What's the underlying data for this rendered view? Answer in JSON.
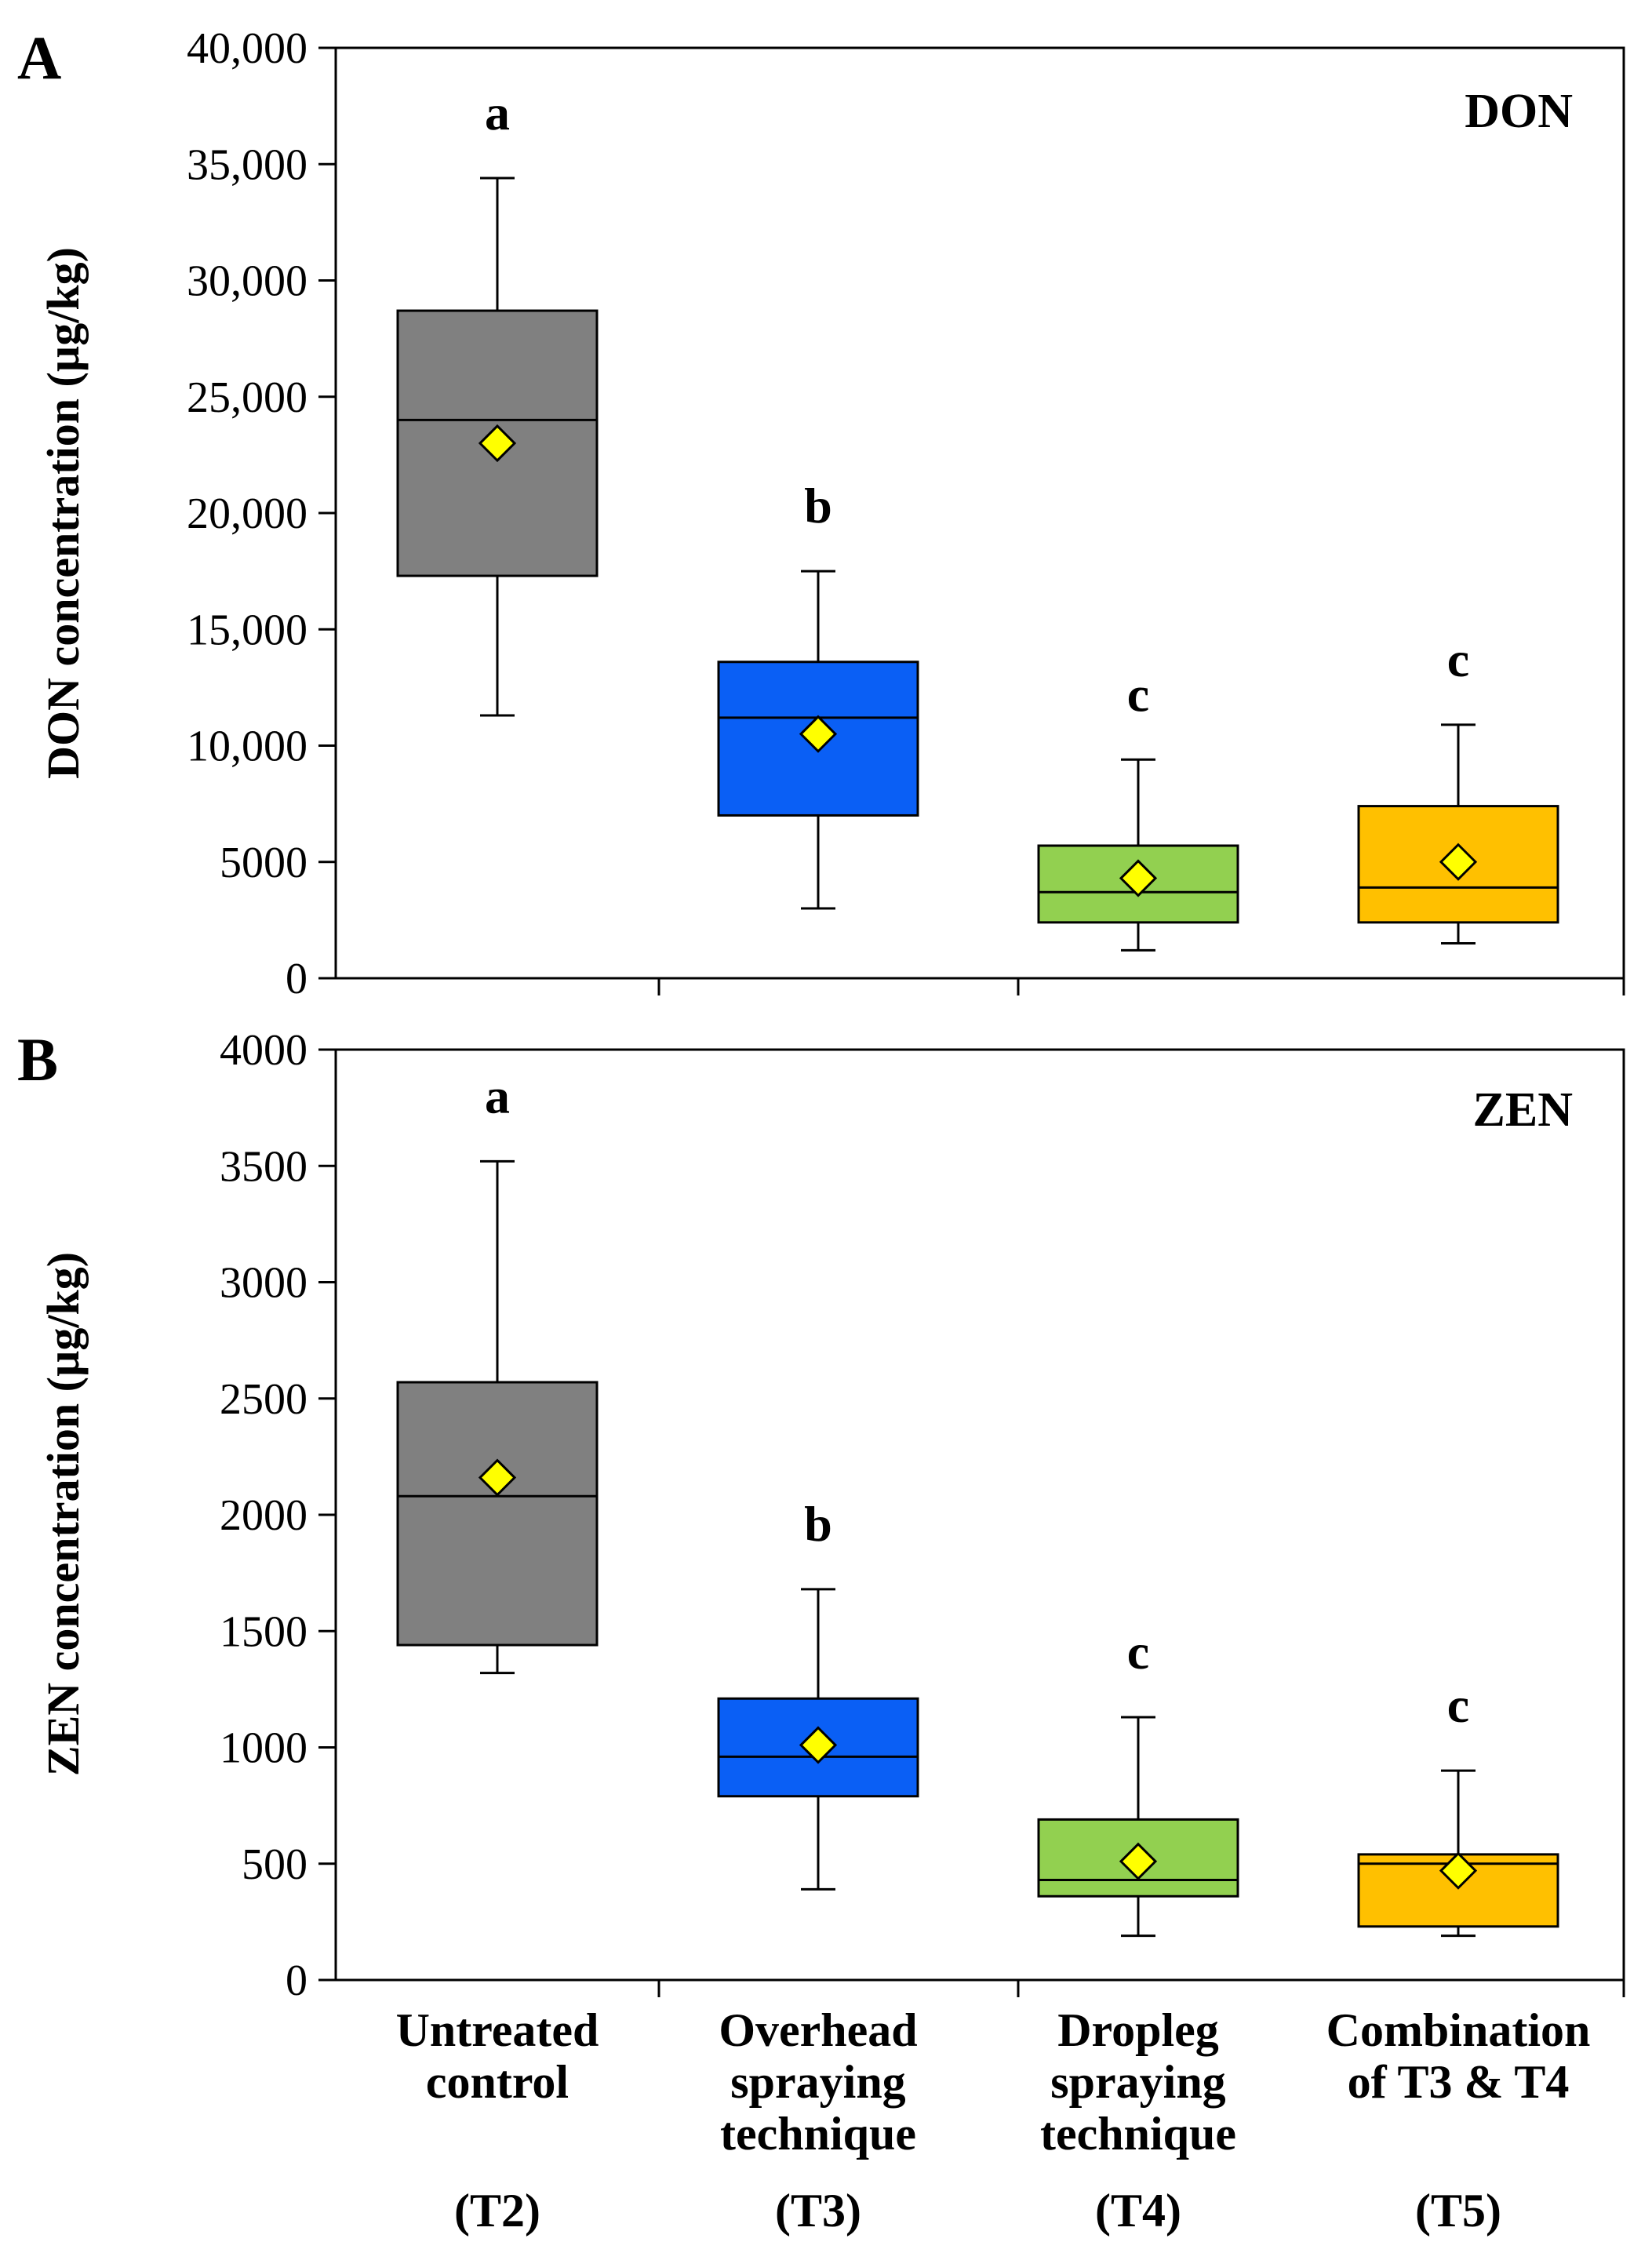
{
  "chart_data": [
    {
      "type": "box",
      "panel_label": "A",
      "series_label": "DON",
      "ylabel": "DON concentration (µg/kg)",
      "ylim": [
        0,
        40000
      ],
      "yticks": [
        0,
        5000,
        10000,
        15000,
        20000,
        25000,
        30000,
        35000,
        40000
      ],
      "ytick_labels": [
        "0",
        "5000",
        "10,000",
        "15,000",
        "20,000",
        "25,000",
        "30,000",
        "35,000",
        "40,000"
      ],
      "boxes": [
        {
          "min": 11300,
          "q1": 17300,
          "median": 24000,
          "q3": 28700,
          "max": 34400,
          "mean": 23000,
          "sig": "a",
          "color": "#808080"
        },
        {
          "min": 3000,
          "q1": 7000,
          "median": 11200,
          "q3": 13600,
          "max": 17500,
          "mean": 10500,
          "sig": "b",
          "color": "#0a5ff5"
        },
        {
          "min": 1200,
          "q1": 2400,
          "median": 3700,
          "q3": 5700,
          "max": 9400,
          "mean": 4300,
          "sig": "c",
          "color": "#92d050"
        },
        {
          "min": 1500,
          "q1": 2400,
          "median": 3900,
          "q3": 7400,
          "max": 10900,
          "mean": 5000,
          "sig": "c",
          "color": "#ffc000"
        }
      ]
    },
    {
      "type": "box",
      "panel_label": "B",
      "series_label": "ZEN",
      "ylabel": "ZEN concentration (µg/kg)",
      "ylim": [
        0,
        4000
      ],
      "yticks": [
        0,
        500,
        1000,
        1500,
        2000,
        2500,
        3000,
        3500,
        4000
      ],
      "ytick_labels": [
        "0",
        "500",
        "1000",
        "1500",
        "2000",
        "2500",
        "3000",
        "3500",
        "4000"
      ],
      "boxes": [
        {
          "min": 1320,
          "q1": 1440,
          "median": 2080,
          "q3": 2570,
          "max": 3520,
          "mean": 2160,
          "sig": "a",
          "color": "#808080"
        },
        {
          "min": 390,
          "q1": 790,
          "median": 960,
          "q3": 1210,
          "max": 1680,
          "mean": 1010,
          "sig": "b",
          "color": "#0a5ff5"
        },
        {
          "min": 190,
          "q1": 360,
          "median": 430,
          "q3": 690,
          "max": 1130,
          "mean": 510,
          "sig": "c",
          "color": "#92d050"
        },
        {
          "min": 190,
          "q1": 230,
          "median": 500,
          "q3": 540,
          "max": 900,
          "mean": 470,
          "sig": "c",
          "color": "#ffc000"
        }
      ]
    }
  ],
  "categories": [
    {
      "lines": [
        "Untreated",
        "control"
      ],
      "code": "(T2)"
    },
    {
      "lines": [
        "Overhead",
        "spraying",
        "technique"
      ],
      "code": "(T3)"
    },
    {
      "lines": [
        "Dropleg",
        "spraying",
        "technique"
      ],
      "code": "(T4)"
    },
    {
      "lines": [
        "Combination",
        "of T3 & T4"
      ],
      "code": "(T5)"
    }
  ],
  "mean_marker_color": "#ffff00"
}
